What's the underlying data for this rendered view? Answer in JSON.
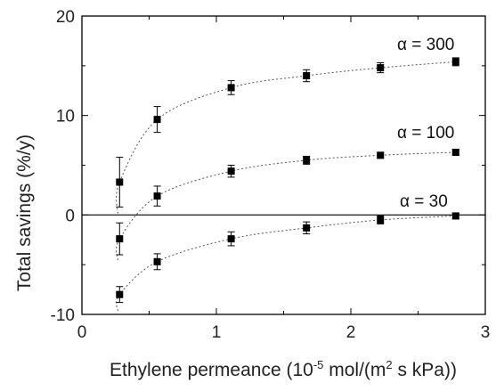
{
  "chart_data": {
    "type": "scatter",
    "title": "",
    "xlabel": "Ethylene permeance (10",
    "xlabel_sup1": "-5",
    "xlabel_mid": " mol/(m",
    "xlabel_sup2": "2",
    "xlabel_end": " s kPa))",
    "ylabel": "Total savings (%/y)",
    "xlim": [
      0,
      3
    ],
    "ylim": [
      -10,
      20
    ],
    "xticks": [
      0,
      1,
      2,
      3
    ],
    "yticks": [
      -10,
      0,
      10,
      20
    ],
    "xtick_labels": [
      "0",
      "1",
      "2",
      "3"
    ],
    "ytick_labels": [
      "-10",
      "0",
      "10",
      "20"
    ],
    "zero_line": true,
    "grid": false,
    "marker": "square",
    "fit_curve": "dotted",
    "series": [
      {
        "name": "α = 300",
        "x": [
          0.28,
          0.56,
          1.11,
          1.67,
          2.22,
          2.78
        ],
        "y": [
          3.3,
          9.6,
          12.8,
          14.0,
          14.8,
          15.4
        ],
        "err": [
          2.5,
          1.3,
          0.7,
          0.6,
          0.5,
          0.4
        ]
      },
      {
        "name": "α = 100",
        "x": [
          0.28,
          0.56,
          1.11,
          1.67,
          2.22,
          2.78
        ],
        "y": [
          -2.4,
          1.9,
          4.4,
          5.5,
          6.0,
          6.3
        ],
        "err": [
          1.6,
          1.0,
          0.6,
          0.4,
          0.3,
          0.3
        ]
      },
      {
        "name": "α = 30",
        "x": [
          0.28,
          0.56,
          1.11,
          1.67,
          2.22,
          2.78
        ],
        "y": [
          -8.0,
          -4.7,
          -2.4,
          -1.3,
          -0.5,
          -0.1
        ],
        "err": [
          0.8,
          0.8,
          0.7,
          0.6,
          0.4,
          0.3
        ]
      }
    ]
  }
}
